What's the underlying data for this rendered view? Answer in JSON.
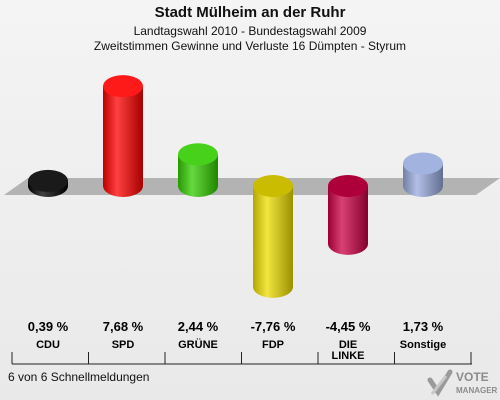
{
  "header": {
    "title": "Stadt Mülheim an der Ruhr",
    "subtitle1": "Landtagswahl 2010 - Bundestagswahl 2009",
    "subtitle2": "Zweitstimmen Gewinne und Verluste 16 Dümpten - Styrum"
  },
  "footer": {
    "status": "6 von 6 Schnellmeldungen"
  },
  "logo": {
    "text1": "VOTE",
    "text2": "MANAGER"
  },
  "chart_data": {
    "type": "bar",
    "categories": [
      "CDU",
      "SPD",
      "GRÜNE",
      "FDP",
      "DIE LINKE",
      "Sonstige"
    ],
    "category_lines": [
      [
        "CDU"
      ],
      [
        "SPD"
      ],
      [
        "GRÜNE"
      ],
      [
        "FDP"
      ],
      [
        "DIE",
        "LINKE"
      ],
      [
        "Sonstige"
      ]
    ],
    "values": [
      0.39,
      7.68,
      2.44,
      -7.76,
      -4.45,
      1.73
    ],
    "value_labels": [
      "0,39 %",
      "7,68 %",
      "2,44 %",
      "-7,76 %",
      "-4,45 %",
      "1,73 %"
    ],
    "colors": [
      "#000000",
      "#ff0000",
      "#33cc00",
      "#eedd00",
      "#cc0044",
      "#99aadd"
    ],
    "ylim": [
      -7.76,
      7.68
    ],
    "grid": false,
    "legend": "none"
  }
}
